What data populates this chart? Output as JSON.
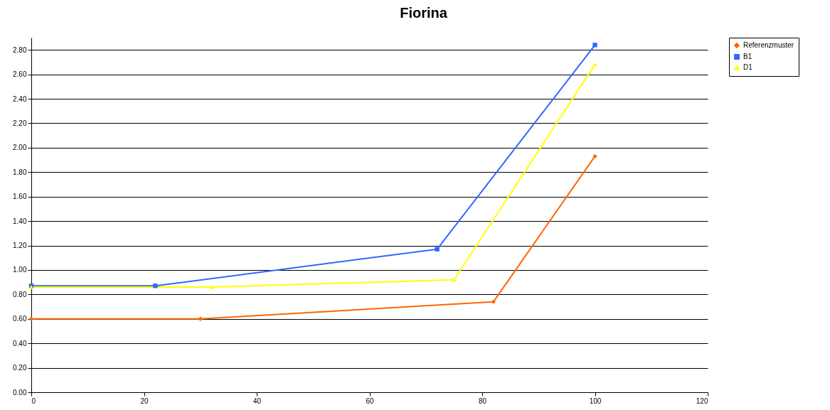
{
  "chart_data": {
    "type": "line",
    "title": "Fiorina",
    "series": [
      {
        "name": "Referenzmuster",
        "color": "#ff6600",
        "marker": "diamond",
        "x": [
          0,
          30,
          82,
          100
        ],
        "values": [
          0.6,
          0.6,
          0.74,
          1.93
        ]
      },
      {
        "name": "B1",
        "color": "#3366ff",
        "marker": "square",
        "x": [
          0,
          22,
          72,
          100
        ],
        "values": [
          0.87,
          0.87,
          1.17,
          2.84
        ]
      },
      {
        "name": "D1",
        "color": "#ffff00",
        "marker": "triangle",
        "x": [
          0,
          32,
          75,
          100
        ],
        "values": [
          0.86,
          0.86,
          0.92,
          2.68
        ]
      }
    ],
    "xlim": [
      0,
      120
    ],
    "xticks": [
      0,
      20,
      40,
      60,
      80,
      100,
      120
    ],
    "ylim": [
      0,
      2.9
    ],
    "yticks": [
      {
        "value": 0,
        "label": "0.00"
      },
      {
        "value": 0.2,
        "label": "0.20"
      },
      {
        "value": 0.4,
        "label": "0.40"
      },
      {
        "value": 0.6,
        "label": "0.60"
      },
      {
        "value": 0.8,
        "label": "0.80"
      },
      {
        "value": 1,
        "label": "1.00"
      },
      {
        "value": 1.2,
        "label": "1.20"
      },
      {
        "value": 1.4,
        "label": "1.40"
      },
      {
        "value": 1.6,
        "label": "1.60"
      },
      {
        "value": 1.8,
        "label": "1.80"
      },
      {
        "value": 2,
        "label": "2.00"
      },
      {
        "value": 2.2,
        "label": "2.20"
      },
      {
        "value": 2.4,
        "label": "2.40"
      },
      {
        "value": 2.6,
        "label": "2.60"
      },
      {
        "value": 2.8,
        "label": "2.80"
      }
    ],
    "grid": "y",
    "legend": "right"
  }
}
